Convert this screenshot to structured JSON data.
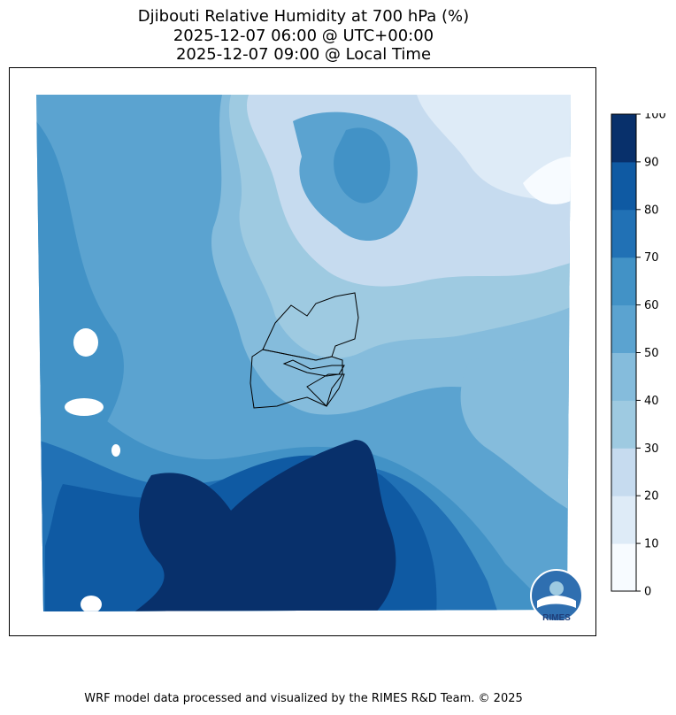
{
  "title": {
    "line1": "Djibouti Relative Humidity at 700 hPa (%)",
    "line2": "2025-12-07 06:00 @ UTC+00:00",
    "line3": "2025-12-07 09:00 @ Local Time"
  },
  "colorbar": {
    "ticks": [
      "0",
      "10",
      "20",
      "30",
      "40",
      "50",
      "60",
      "70",
      "80",
      "90",
      "100"
    ],
    "colors": [
      "#f7fbff",
      "#deebf7",
      "#c6dbef",
      "#9ecae1",
      "#85bcdc",
      "#5ba3d0",
      "#4292c6",
      "#2171b5",
      "#0f5aa3",
      "#08306b"
    ],
    "min": 0,
    "max": 100
  },
  "logo": {
    "text": "RIMES"
  },
  "footer": "WRF model data processed and visualized by the RIMES R&D Team. © 2025"
}
